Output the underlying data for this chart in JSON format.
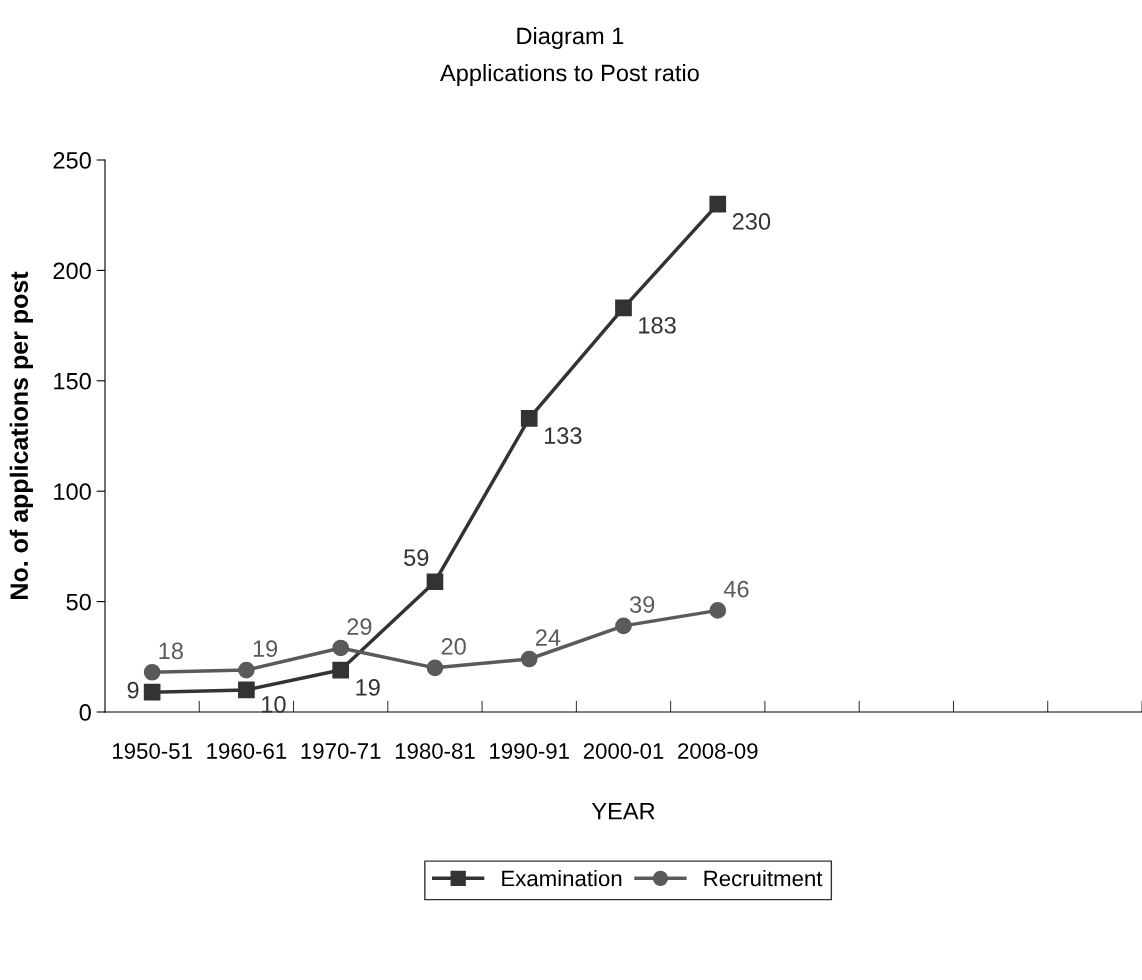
{
  "chart_data": {
    "type": "line",
    "title": "Diagram 1",
    "subtitle": "Applications to Post ratio",
    "xlabel": "YEAR",
    "ylabel": "No. of applications per post",
    "categories": [
      "1950-51",
      "1960-61",
      "1970-71",
      "1980-81",
      "1990-91",
      "2000-01",
      "2008-09",
      null,
      null,
      null,
      null
    ],
    "series": [
      {
        "name": "Examination",
        "color": "#333333",
        "marker": "square",
        "values": [
          9,
          10,
          19,
          59,
          133,
          183,
          230,
          null,
          null,
          null,
          null
        ]
      },
      {
        "name": "Recruitment",
        "color": "#5a5a5a",
        "marker": "circle",
        "values": [
          18,
          19,
          29,
          20,
          24,
          39,
          46,
          null,
          null,
          null,
          null
        ]
      }
    ],
    "ylim": [
      0,
      250
    ],
    "yticks": [
      0,
      50,
      100,
      150,
      200,
      250
    ],
    "grid": false,
    "legend": "bottom",
    "data_labels": true
  }
}
